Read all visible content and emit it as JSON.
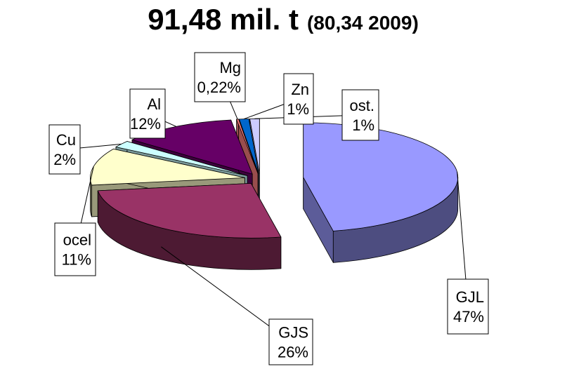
{
  "chart_data": {
    "type": "pie3d",
    "title": "91,48 mil. t",
    "subtitle": "(80,34 2009)",
    "categories": [
      "GJL",
      "GJS",
      "ocel",
      "Cu",
      "Al",
      "Mg",
      "Zn",
      "ost."
    ],
    "values": [
      47,
      26,
      11,
      2,
      12,
      0.22,
      1,
      1
    ],
    "value_labels": [
      "47%",
      "26%",
      "11%",
      "2%",
      "12%",
      "0,22%",
      "1%",
      "1%"
    ],
    "colors": [
      "#9999ff",
      "#993366",
      "#ffffcc",
      "#ccffff",
      "#660066",
      "#ff8080",
      "#0066cc",
      "#ccccff"
    ]
  }
}
